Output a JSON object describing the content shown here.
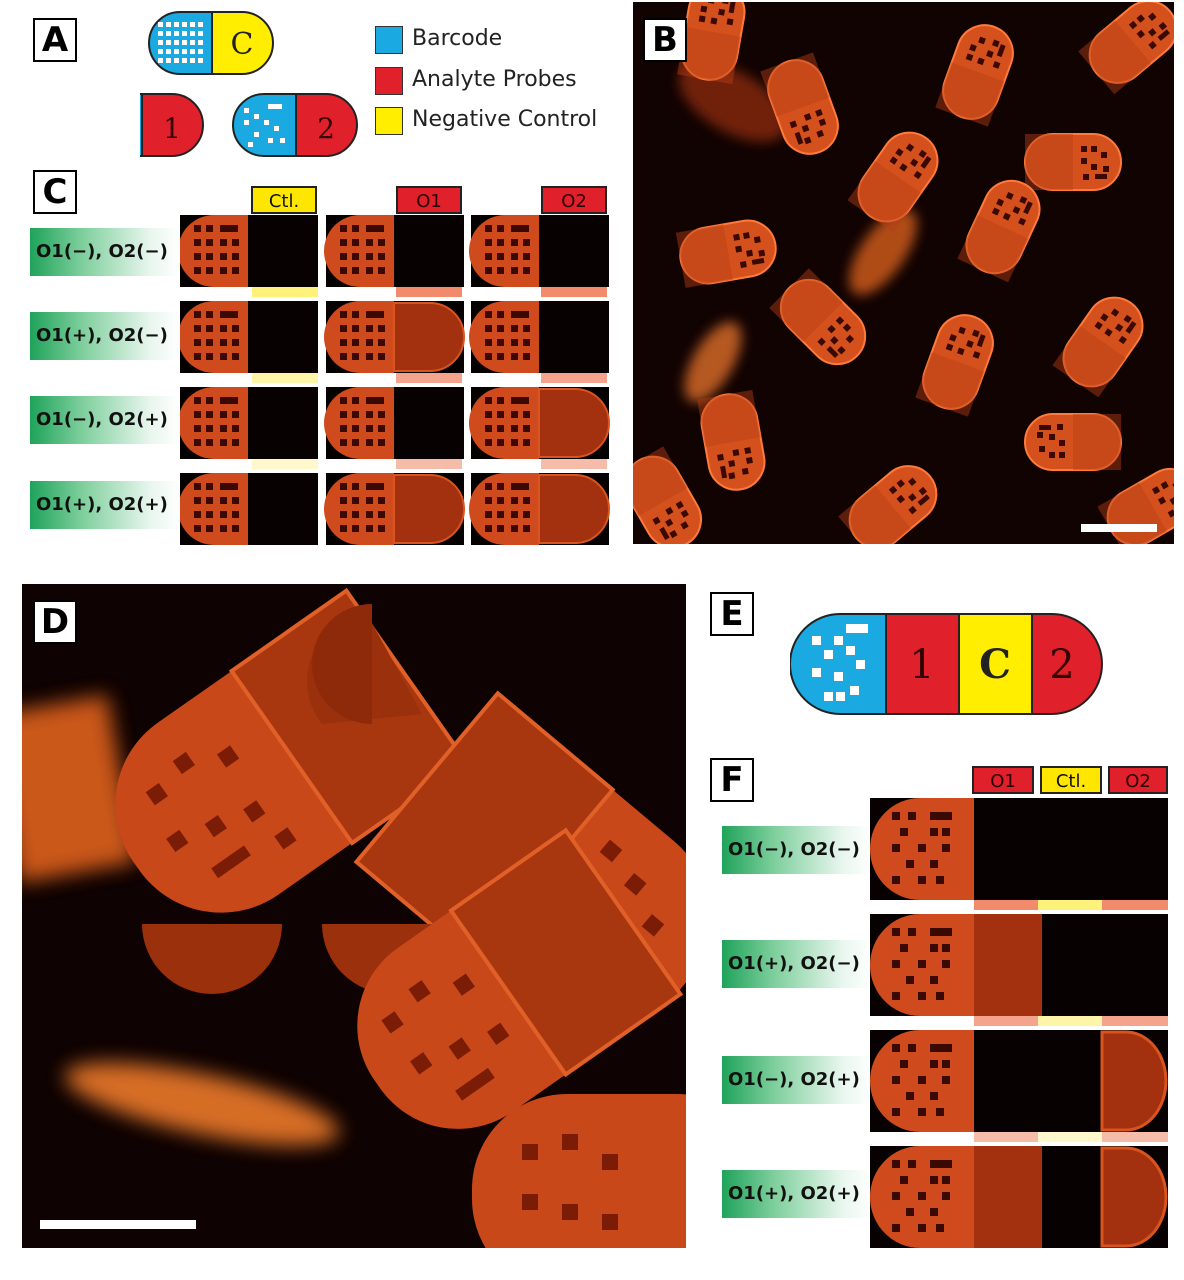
{
  "panels": {
    "a": "A",
    "b": "B",
    "c": "C",
    "d": "D",
    "e": "E",
    "f": "F"
  },
  "capsules": {
    "control": "C",
    "analyte1": "1",
    "analyte2": "2"
  },
  "legend": {
    "barcode": "Barcode",
    "analyte": "Analyte Probes",
    "negative": "Negative Control"
  },
  "colors": {
    "barcode": "#1aa9e0",
    "analyte": "#e0202a",
    "control": "#ffee00"
  },
  "panel_c": {
    "columns": [
      "Ctl.",
      "O1",
      "O2"
    ],
    "rows": [
      "O1(−), O2(−)",
      "O1(+), O2(−)",
      "O1(−), O2(+)",
      "O1(+), O2(+)"
    ]
  },
  "panel_f": {
    "columns": [
      "O1",
      "Ctl.",
      "O2"
    ],
    "rows": [
      "O1(−), O2(−)",
      "O1(+), O2(−)",
      "O1(−), O2(+)",
      "O1(+), O2(+)"
    ]
  }
}
